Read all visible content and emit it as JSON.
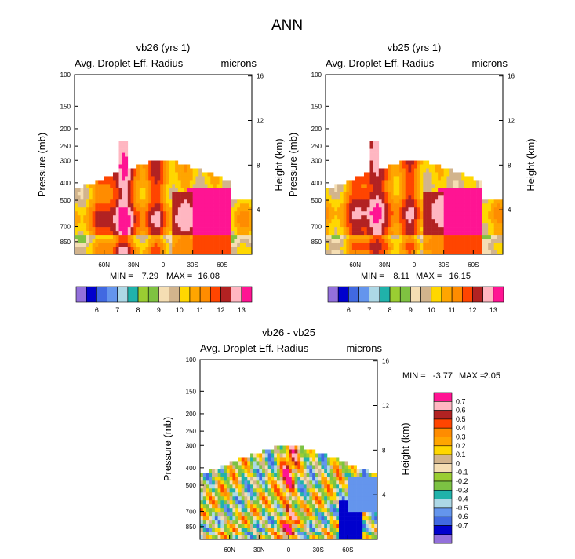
{
  "figure": {
    "title": "ANN"
  },
  "palettes": {
    "abs": [
      "#9370db",
      "#0000cd",
      "#4169e1",
      "#6495ed",
      "#add8e6",
      "#20b2aa",
      "#9acd32",
      "#7fc241",
      "#f5deb3",
      "#d2b48c",
      "#ffd700",
      "#ffa500",
      "#ff8c00",
      "#ff4500",
      "#b22222",
      "#ffb6c1",
      "#ff1493"
    ],
    "diff": [
      "#9370db",
      "#0000cd",
      "#4169e1",
      "#6495ed",
      "#add8e6",
      "#20b2aa",
      "#7cc243",
      "#9acd32",
      "#f5deb3",
      "#d2b48c",
      "#ffd700",
      "#ffa500",
      "#ff8c00",
      "#ff4500",
      "#b22222",
      "#ffb6c1",
      "#ff1493"
    ]
  },
  "chart_data": [
    {
      "type": "heatmap",
      "title": "vb26 (yrs 1)",
      "subtitle_left": "Avg. Droplet Eff. Radius",
      "subtitle_right": "microns",
      "ylabel": "Pressure (mb)",
      "ylabel_right": "Height (km)",
      "x_ticks": [
        "60N",
        "30N",
        "0",
        "30S",
        "60S"
      ],
      "y_ticks": [
        "100",
        "150",
        "200",
        "250",
        "300",
        "400",
        "500",
        "700",
        "850"
      ],
      "y_right_ticks": [
        "16",
        "12",
        "8",
        "4"
      ],
      "stats": {
        "min_label": "MIN =",
        "min": "7.29",
        "max_label": "MAX =",
        "max": "16.08"
      },
      "colorbar": {
        "orientation": "horizontal",
        "labels": [
          "6",
          "7",
          "8",
          "9",
          "10",
          "11",
          "12",
          "13"
        ]
      },
      "fields": [
        {
          "name": "pink-core",
          "lat": 45,
          "p": 620,
          "value": 13.5
        },
        {
          "name": "darkred-north",
          "lat": 50,
          "p": 620,
          "value": 12.5
        },
        {
          "name": "darkred-tropics",
          "lat": 5,
          "p": 470,
          "value": 12.2
        }
      ]
    },
    {
      "type": "heatmap",
      "title": "vb25 (yrs 1)",
      "subtitle_left": "Avg. Droplet Eff. Radius",
      "subtitle_right": "microns",
      "ylabel": "Pressure (mb)",
      "ylabel_right": "Height (km)",
      "x_ticks": [
        "60N",
        "30N",
        "0",
        "30S",
        "60S"
      ],
      "y_ticks": [
        "100",
        "150",
        "200",
        "250",
        "300",
        "400",
        "500",
        "700",
        "850"
      ],
      "y_right_ticks": [
        "16",
        "12",
        "8",
        "4"
      ],
      "stats": {
        "min_label": "MIN =",
        "min": "8.11",
        "max_label": "MAX =",
        "max": "16.15"
      },
      "colorbar": {
        "orientation": "horizontal",
        "labels": [
          "6",
          "7",
          "8",
          "9",
          "10",
          "11",
          "12",
          "13"
        ]
      },
      "fields": [
        {
          "name": "pink-core",
          "lat": 45,
          "p": 620,
          "value": 13.5
        },
        {
          "name": "darkred-north",
          "lat": 50,
          "p": 600,
          "value": 12.6
        }
      ]
    },
    {
      "type": "heatmap",
      "title": "vb26 - vb25",
      "subtitle_left": "Avg. Droplet Eff. Radius",
      "subtitle_right": "microns",
      "ylabel": "Pressure (mb)",
      "ylabel_right": "Height (km)",
      "x_ticks": [
        "60N",
        "30N",
        "0",
        "30S",
        "60S"
      ],
      "y_ticks": [
        "100",
        "150",
        "200",
        "250",
        "300",
        "400",
        "500",
        "700",
        "850"
      ],
      "y_right_ticks": [
        "16",
        "12",
        "8",
        "4"
      ],
      "stats": {
        "min_label": "MIN =",
        "min": "-3.77",
        "max_label": "MAX =",
        "max": "2.05"
      },
      "colorbar": {
        "orientation": "vertical",
        "labels": [
          "0.7",
          "0.6",
          "0.5",
          "0.4",
          "0.3",
          "0.2",
          "0.1",
          "0",
          "-0.1",
          "-0.2",
          "-0.3",
          "-0.4",
          "-0.5",
          "-0.6",
          "-0.7"
        ]
      },
      "fields": [
        {
          "name": "positive-equator",
          "lat": 0,
          "p": 500,
          "value": 0.7
        },
        {
          "name": "negative-southern",
          "lat": -60,
          "p": 680,
          "value": -0.7
        }
      ]
    }
  ]
}
